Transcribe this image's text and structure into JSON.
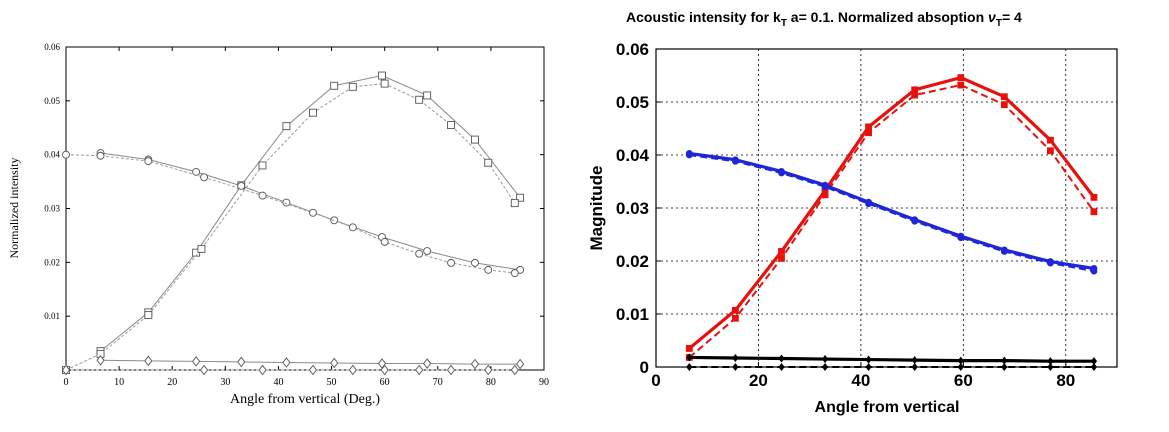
{
  "chart_data": [
    {
      "type": "line",
      "title": "",
      "xlabel": "Angle from vertical (Deg.)",
      "ylabel": "Normalized intensity",
      "xlim": [
        0,
        90
      ],
      "ylim": [
        0,
        0.06
      ],
      "xticks": [
        "0",
        "10",
        "20",
        "30",
        "40",
        "50",
        "60",
        "70",
        "80",
        "90"
      ],
      "yticks": [
        "0.01",
        "0.02",
        "0.03",
        "0.04",
        "0.05",
        "0.06"
      ],
      "grid": false,
      "legend": "none",
      "series": [
        {
          "marker": "square",
          "style": "solid",
          "x": [
            6.5,
            15.5,
            24.5,
            33,
            41.5,
            50.5,
            59.5,
            68,
            77,
            85.5
          ],
          "y": [
            0.0035,
            0.0107,
            0.0218,
            0.0343,
            0.0453,
            0.0528,
            0.0547,
            0.051,
            0.0428,
            0.032
          ]
        },
        {
          "marker": "square",
          "style": "dashed",
          "x": [
            0,
            6.5,
            15.5,
            25.5,
            37,
            46.5,
            54,
            60,
            66.5,
            72.5,
            79.5,
            84.5
          ],
          "y": [
            0.0,
            0.003,
            0.0102,
            0.0225,
            0.038,
            0.0478,
            0.0526,
            0.0532,
            0.0502,
            0.0455,
            0.0385,
            0.031
          ]
        },
        {
          "marker": "circle",
          "style": "solid",
          "x": [
            6.5,
            15.5,
            24.5,
            33,
            41.5,
            50.5,
            59.5,
            68,
            77,
            85.5
          ],
          "y": [
            0.0403,
            0.0391,
            0.0368,
            0.0342,
            0.0311,
            0.0278,
            0.0247,
            0.0221,
            0.0199,
            0.0186
          ]
        },
        {
          "marker": "circle",
          "style": "dashed",
          "x": [
            0,
            6.5,
            15.5,
            26,
            37,
            46.5,
            54,
            60,
            66.5,
            72.5,
            79.5,
            84.5
          ],
          "y": [
            0.04,
            0.0398,
            0.0388,
            0.0358,
            0.0324,
            0.0292,
            0.0265,
            0.0238,
            0.0216,
            0.0199,
            0.0186,
            0.018
          ]
        },
        {
          "marker": "diamond",
          "style": "solid",
          "x": [
            6.5,
            15.5,
            24.5,
            33,
            41.5,
            50.5,
            59.5,
            68,
            77,
            85.5
          ],
          "y": [
            0.0018,
            0.0017,
            0.0016,
            0.0015,
            0.0014,
            0.0013,
            0.0012,
            0.0012,
            0.0011,
            0.0011
          ]
        },
        {
          "marker": "diamond",
          "style": "dashed",
          "x": [
            0,
            26,
            37,
            46.5,
            54,
            60,
            66.5,
            72.5,
            79.5,
            84.5
          ],
          "y": [
            0.0,
            0.0,
            0.0,
            0.0,
            0.0,
            0.0,
            0.0,
            0.0,
            0.0,
            0.0
          ]
        }
      ]
    },
    {
      "type": "line",
      "title_main": "Acoustic intensity for k",
      "title_sub1": "T",
      "title_mid": " a= 0.1. Normalized absoption ",
      "title_nu": "ν",
      "title_sub2": "T",
      "title_end": "= 4",
      "xlabel": "Angle from vertical",
      "ylabel": "Magnitude",
      "xlim": [
        0,
        90
      ],
      "ylim": [
        0,
        0.06
      ],
      "xticks": [
        "0",
        "20",
        "40",
        "60",
        "80"
      ],
      "yticks": [
        "0",
        "0.01",
        "0.02",
        "0.03",
        "0.04",
        "0.05",
        "0.06"
      ],
      "grid": true,
      "legend": "none",
      "colors": {
        "red": "#e8100c",
        "blue": "#1f26d8",
        "black": "#000000"
      },
      "series": [
        {
          "color": "red",
          "marker": "square",
          "style": "solid",
          "x": [
            6.5,
            15.5,
            24.5,
            33,
            41.5,
            50.5,
            59.5,
            68,
            77,
            85.5
          ],
          "y": [
            0.0035,
            0.0107,
            0.0218,
            0.0333,
            0.0453,
            0.0523,
            0.0546,
            0.051,
            0.0428,
            0.032
          ]
        },
        {
          "color": "red",
          "marker": "square",
          "style": "dashed",
          "x": [
            6.5,
            15.5,
            24.5,
            33,
            41.5,
            50.5,
            59.5,
            68,
            77,
            85.5
          ],
          "y": [
            0.0018,
            0.0092,
            0.0205,
            0.0325,
            0.0442,
            0.0513,
            0.0532,
            0.0495,
            0.0408,
            0.0293
          ]
        },
        {
          "color": "blue",
          "marker": "circle",
          "style": "solid",
          "x": [
            6.5,
            15.5,
            24.5,
            33,
            41.5,
            50.5,
            59.5,
            68,
            77,
            85.5
          ],
          "y": [
            0.0403,
            0.0391,
            0.0369,
            0.0343,
            0.0311,
            0.0278,
            0.0247,
            0.0221,
            0.0199,
            0.0186
          ]
        },
        {
          "color": "blue",
          "marker": "circle",
          "style": "dashed",
          "x": [
            6.5,
            15.5,
            24.5,
            33,
            41.5,
            50.5,
            59.5,
            68,
            77,
            85.5
          ],
          "y": [
            0.04,
            0.0388,
            0.0366,
            0.034,
            0.0308,
            0.0275,
            0.0244,
            0.0218,
            0.0196,
            0.0181
          ]
        },
        {
          "color": "black",
          "marker": "diamond",
          "style": "solid",
          "x": [
            6.5,
            15.5,
            24.5,
            33,
            41.5,
            50.5,
            59.5,
            68,
            77,
            85.5
          ],
          "y": [
            0.0018,
            0.0017,
            0.0016,
            0.0015,
            0.0014,
            0.0013,
            0.0012,
            0.0012,
            0.0011,
            0.0011
          ]
        },
        {
          "color": "black",
          "marker": "diamond",
          "style": "dashed",
          "x": [
            6.5,
            15.5,
            24.5,
            33,
            41.5,
            50.5,
            59.5,
            68,
            77,
            85.5
          ],
          "y": [
            0.0,
            0.0,
            0.0,
            0.0,
            0.0,
            0.0,
            0.0,
            0.0,
            0.0,
            0.0
          ]
        }
      ]
    }
  ]
}
